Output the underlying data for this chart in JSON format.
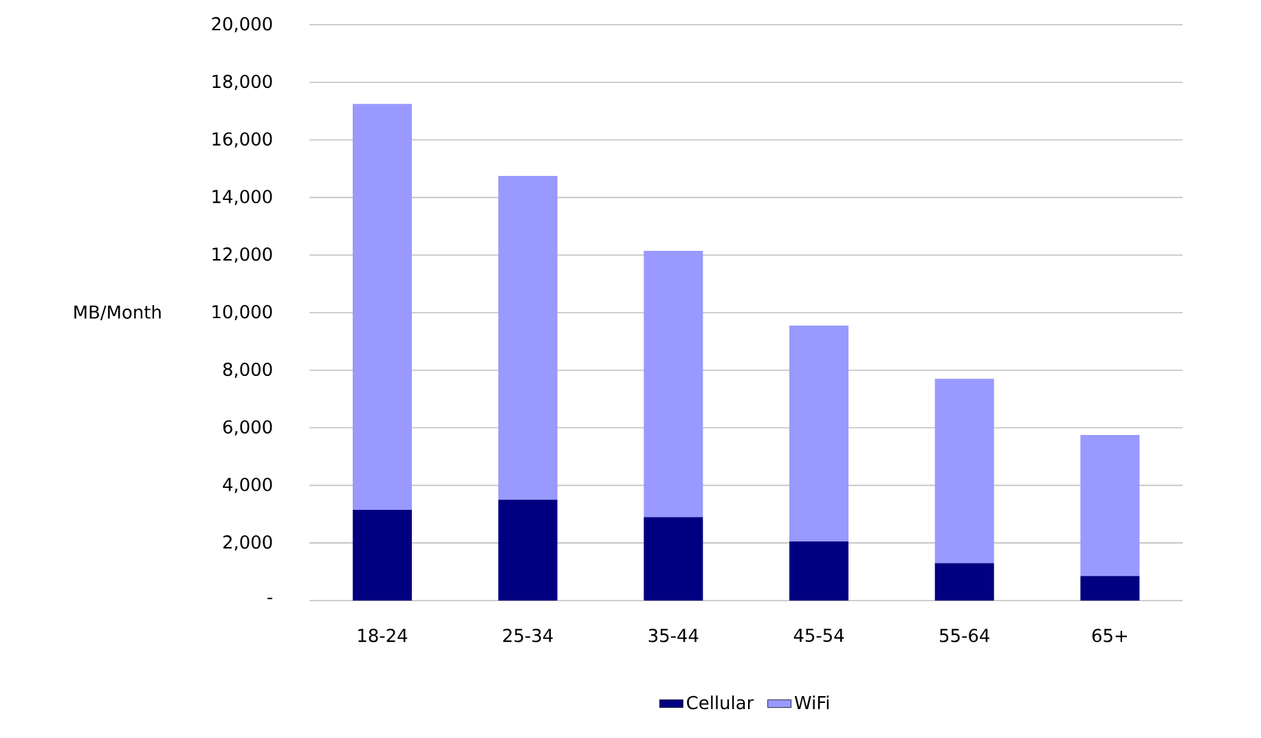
{
  "chart_data": {
    "type": "bar",
    "stacked": true,
    "ylabel": "MB/Month",
    "categories": [
      "18-24",
      "25-34",
      "35-44",
      "45-54",
      "55-64",
      "65+"
    ],
    "series": [
      {
        "name": "Cellular",
        "color": "#000080",
        "values": [
          3150,
          3500,
          2900,
          2050,
          1300,
          850
        ]
      },
      {
        "name": "WiFi",
        "color": "#9999ff",
        "values": [
          14100,
          11250,
          9250,
          7500,
          6400,
          4900
        ]
      }
    ],
    "ylim": [
      0,
      20000
    ],
    "yticks": [
      {
        "value": 0,
        "label": "-"
      },
      {
        "value": 2000,
        "label": "2,000"
      },
      {
        "value": 4000,
        "label": "4,000"
      },
      {
        "value": 6000,
        "label": "6,000"
      },
      {
        "value": 8000,
        "label": "8,000"
      },
      {
        "value": 10000,
        "label": "10,000"
      },
      {
        "value": 12000,
        "label": "12,000"
      },
      {
        "value": 14000,
        "label": "14,000"
      },
      {
        "value": 16000,
        "label": "16,000"
      },
      {
        "value": 18000,
        "label": "18,000"
      },
      {
        "value": 20000,
        "label": "20,000"
      }
    ],
    "grid": "y",
    "legend": "bottom"
  }
}
